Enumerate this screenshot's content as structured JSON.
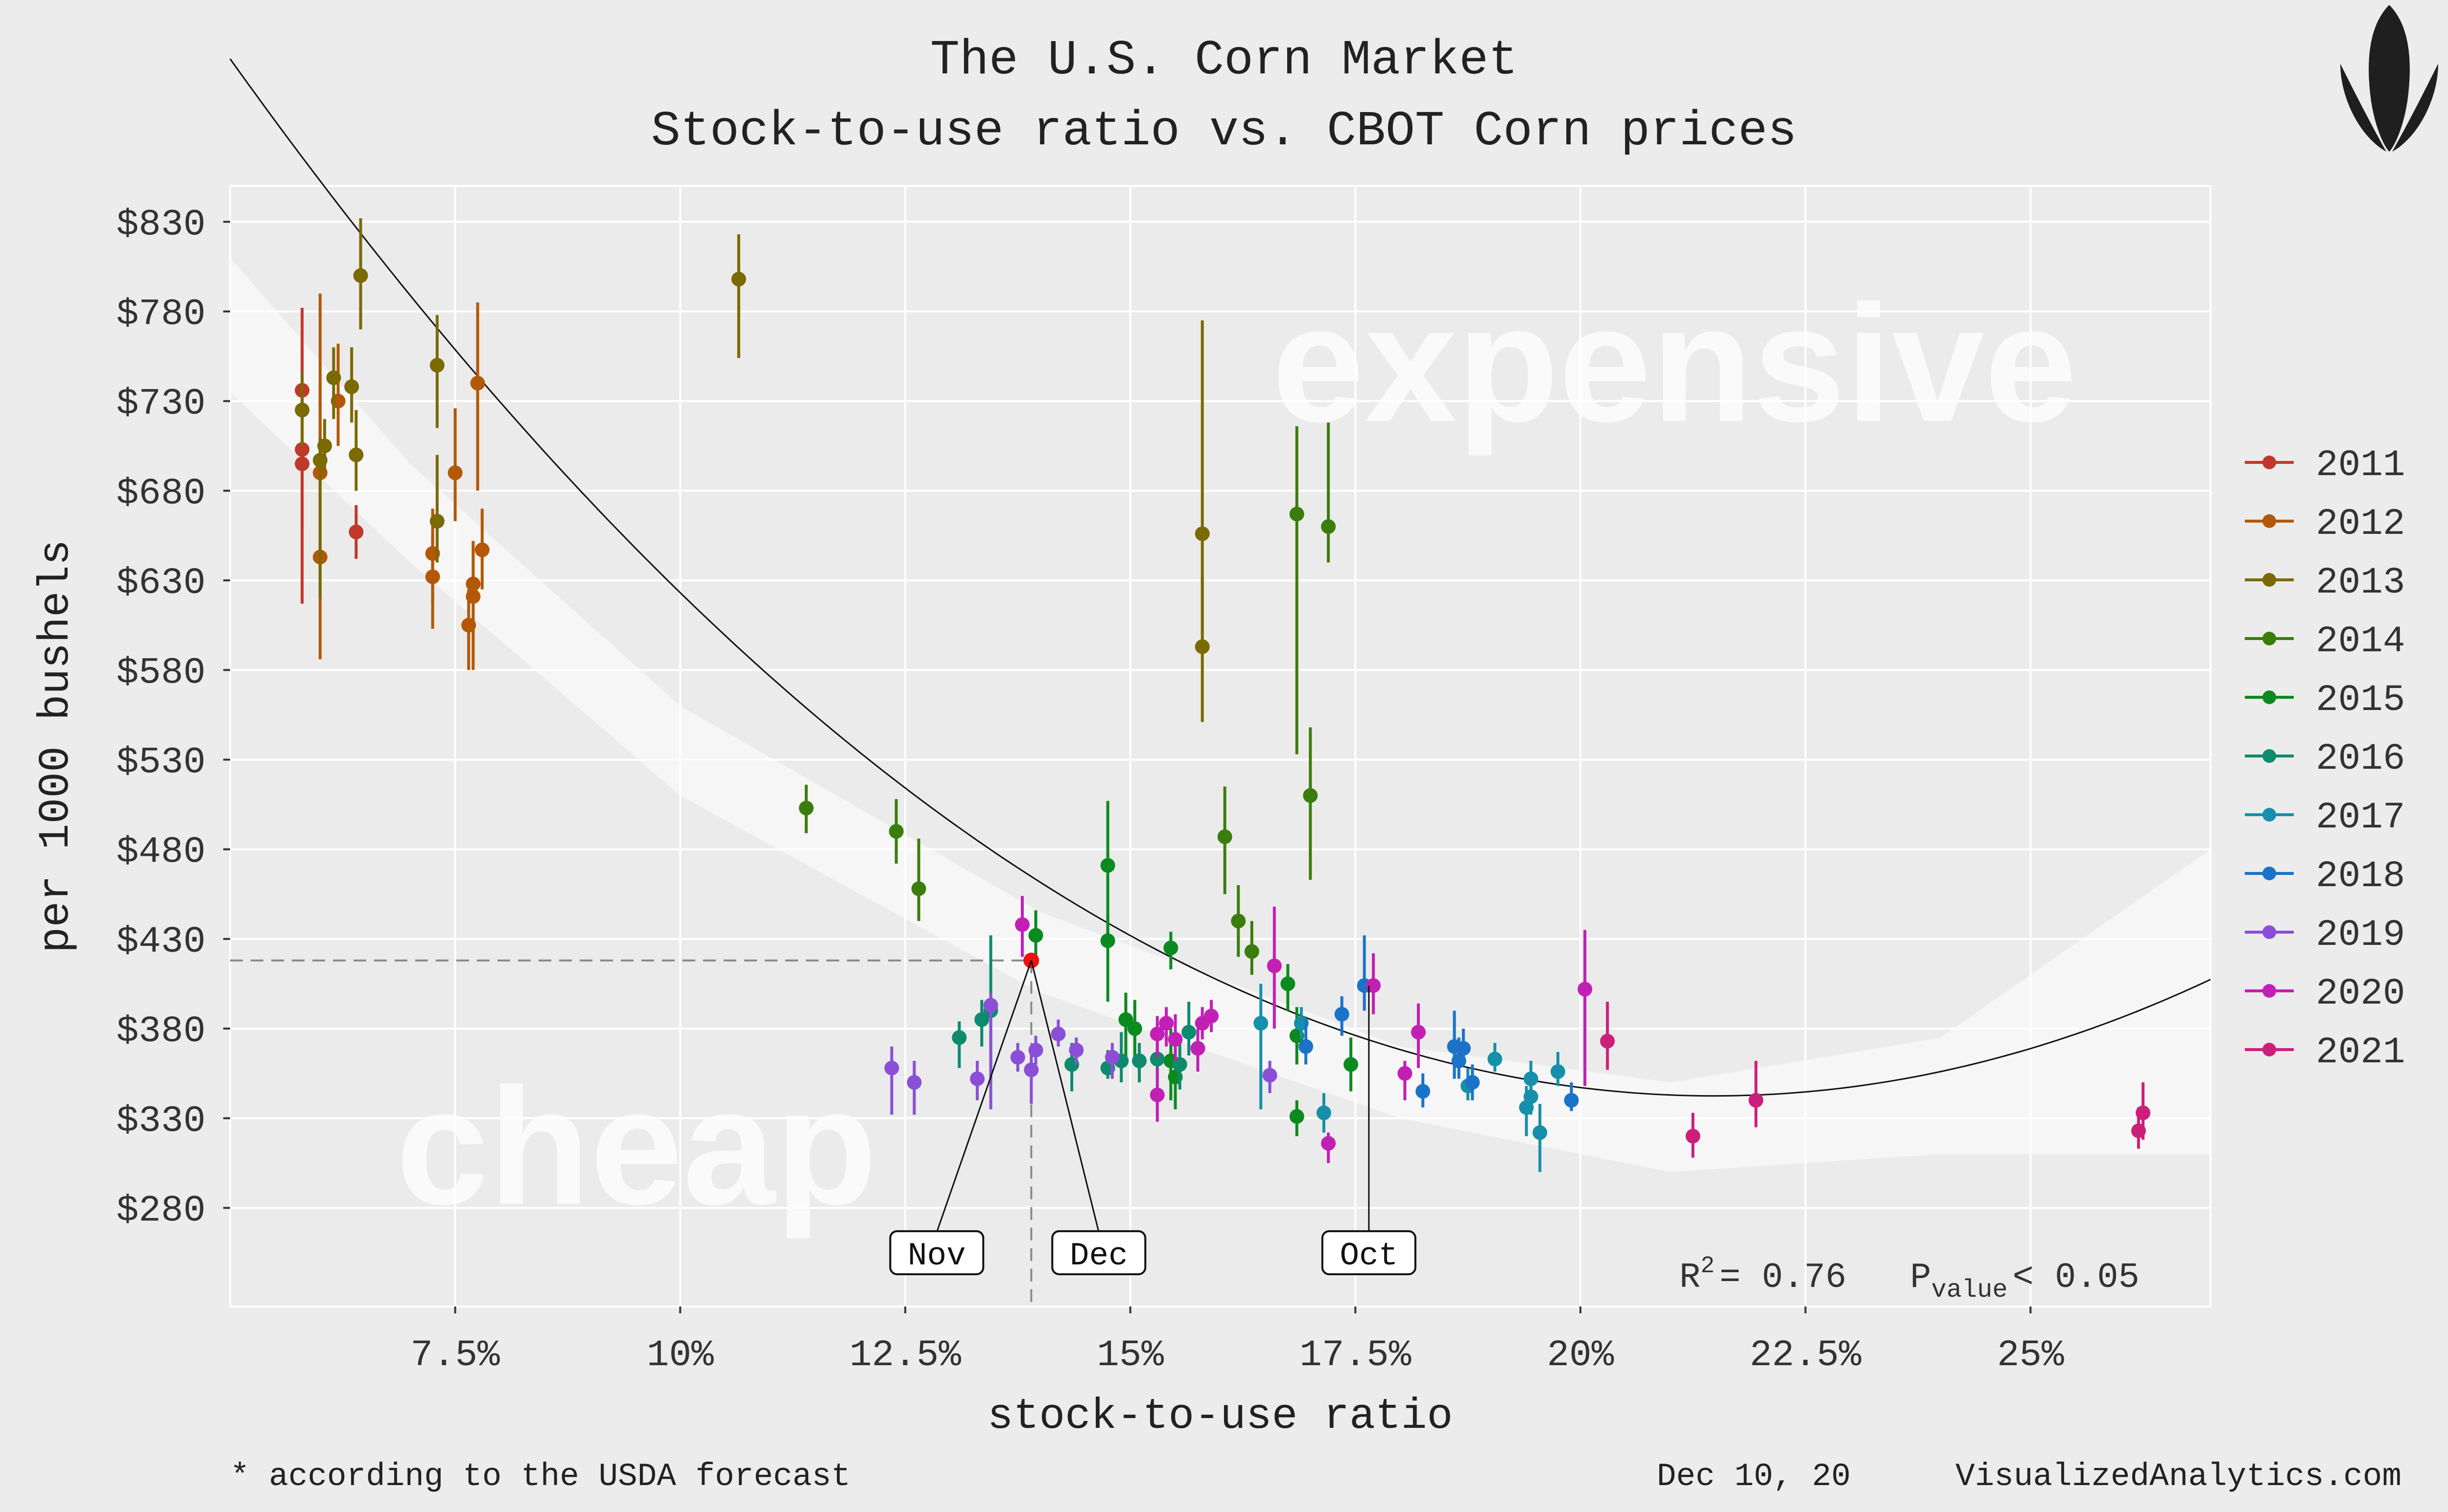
{
  "chart_data": {
    "type": "scatter",
    "title": "The U.S. Corn Market",
    "subtitle": "Stock-to-use ratio vs. CBOT Corn prices",
    "xlabel": "stock-to-use ratio",
    "ylabel": "per 1000 bushels",
    "xlim": [
      5.0,
      27.0
    ],
    "ylim": [
      225,
      850
    ],
    "x_ticks": [
      {
        "value": 7.5,
        "label": "7.5%"
      },
      {
        "value": 10,
        "label": "10%"
      },
      {
        "value": 12.5,
        "label": "12.5%"
      },
      {
        "value": 15,
        "label": "15%"
      },
      {
        "value": 17.5,
        "label": "17.5%"
      },
      {
        "value": 20,
        "label": "20%"
      },
      {
        "value": 22.5,
        "label": "22.5%"
      },
      {
        "value": 25,
        "label": "25%"
      }
    ],
    "y_ticks": [
      {
        "value": 280,
        "label": "$280"
      },
      {
        "value": 330,
        "label": "$330"
      },
      {
        "value": 380,
        "label": "$380"
      },
      {
        "value": 430,
        "label": "$430"
      },
      {
        "value": 480,
        "label": "$480"
      },
      {
        "value": 530,
        "label": "$530"
      },
      {
        "value": 580,
        "label": "$580"
      },
      {
        "value": 630,
        "label": "$630"
      },
      {
        "value": 680,
        "label": "$680"
      },
      {
        "value": 730,
        "label": "$730"
      },
      {
        "value": 780,
        "label": "$780"
      },
      {
        "value": 830,
        "label": "$830"
      }
    ],
    "grid": true,
    "legend_position": "right",
    "region_labels": {
      "expensive": "expensive",
      "cheap": "cheap"
    },
    "stats": {
      "r2_prefix": "R",
      "r2_sup": "2",
      "r2_value": "= 0.76",
      "p_prefix": "P",
      "p_sub": "value",
      "p_value": "< 0.05"
    },
    "trend_coeffs": [
      1325.12,
      -91.5,
      2.13
    ],
    "trend_band": [
      [
        5.0,
        810,
        735
      ],
      [
        7.0,
        695,
        640
      ],
      [
        10.0,
        560,
        510
      ],
      [
        14.0,
        445,
        400
      ],
      [
        18.0,
        370,
        330
      ],
      [
        21.0,
        350,
        300
      ],
      [
        24.0,
        375,
        310
      ],
      [
        27.0,
        480,
        310
      ]
    ],
    "highlight": {
      "x": 13.9,
      "y": 418,
      "color": "#ee1111"
    },
    "callouts": [
      {
        "label": "Nov",
        "x": 12.85,
        "y": 255,
        "tx": 13.9,
        "ty": 418
      },
      {
        "label": "Dec",
        "x": 14.65,
        "y": 255,
        "tx": 13.9,
        "ty": 418
      },
      {
        "label": "Oct",
        "x": 17.65,
        "y": 255,
        "tx": 17.65,
        "ty": 404
      }
    ],
    "series": [
      {
        "name": "2011",
        "color": "#c0392b",
        "points": [
          [
            5.8,
            736,
            782,
            690
          ],
          [
            5.8,
            703,
            760,
            660
          ],
          [
            5.8,
            695,
            735,
            617
          ],
          [
            6.4,
            657,
            672,
            642
          ]
        ]
      },
      {
        "name": "2012",
        "color": "#b35806",
        "points": [
          [
            6.0,
            643,
            790,
            586
          ],
          [
            6.0,
            690,
            740,
            630
          ],
          [
            6.2,
            730,
            762,
            705
          ],
          [
            7.25,
            632,
            655,
            603
          ],
          [
            7.25,
            645,
            670,
            618
          ],
          [
            7.5,
            690,
            726,
            663
          ],
          [
            7.65,
            605,
            625,
            580
          ],
          [
            7.7,
            628,
            650,
            600
          ],
          [
            7.7,
            621,
            652,
            580
          ],
          [
            7.75,
            740,
            785,
            680
          ],
          [
            7.8,
            647,
            670,
            625
          ]
        ]
      },
      {
        "name": "2013",
        "color": "#7a6a00",
        "points": [
          [
            5.8,
            725,
            746,
            705
          ],
          [
            6.0,
            697,
            710,
            620
          ],
          [
            6.05,
            705,
            720,
            690
          ],
          [
            6.15,
            743,
            760,
            720
          ],
          [
            6.35,
            738,
            760,
            718
          ],
          [
            6.4,
            700,
            725,
            680
          ],
          [
            6.45,
            800,
            832,
            770
          ],
          [
            7.3,
            750,
            778,
            715
          ],
          [
            7.3,
            663,
            700,
            640
          ],
          [
            10.65,
            798,
            823,
            754
          ],
          [
            15.8,
            593,
            632,
            551
          ],
          [
            15.8,
            656,
            775,
            600
          ]
        ]
      },
      {
        "name": "2014",
        "color": "#3a7d0c",
        "points": [
          [
            11.4,
            503,
            516,
            489
          ],
          [
            12.4,
            490,
            508,
            472
          ],
          [
            12.65,
            458,
            486,
            440
          ],
          [
            16.05,
            487,
            515,
            455
          ],
          [
            16.2,
            440,
            460,
            420
          ],
          [
            16.35,
            423,
            440,
            410
          ],
          [
            16.85,
            667,
            716,
            533
          ],
          [
            17.0,
            510,
            548,
            463
          ],
          [
            17.2,
            660,
            718,
            640
          ]
        ]
      },
      {
        "name": "2015",
        "color": "#0b8a1f",
        "points": [
          [
            13.95,
            432,
            446,
            420
          ],
          [
            14.75,
            471,
            507,
            428
          ],
          [
            14.75,
            429,
            444,
            395
          ],
          [
            14.95,
            385,
            400,
            360
          ],
          [
            15.05,
            380,
            396,
            360
          ],
          [
            15.45,
            425,
            434,
            413
          ],
          [
            15.45,
            362,
            380,
            340
          ],
          [
            15.5,
            353,
            368,
            335
          ],
          [
            16.75,
            405,
            416,
            390
          ],
          [
            16.85,
            376,
            392,
            360
          ],
          [
            16.85,
            331,
            340,
            320
          ],
          [
            17.45,
            360,
            375,
            345
          ]
        ]
      },
      {
        "name": "2016",
        "color": "#0e8a6e",
        "points": [
          [
            13.1,
            375,
            384,
            358
          ],
          [
            13.35,
            385,
            396,
            370
          ],
          [
            13.45,
            390,
            432,
            350
          ],
          [
            14.35,
            360,
            372,
            345
          ],
          [
            14.75,
            358,
            368,
            352
          ],
          [
            14.9,
            362,
            378,
            350
          ],
          [
            15.1,
            362,
            372,
            350
          ],
          [
            15.3,
            363,
            372,
            352
          ],
          [
            15.55,
            360,
            372,
            346
          ],
          [
            15.65,
            378,
            395,
            365
          ]
        ]
      },
      {
        "name": "2017",
        "color": "#1690aa",
        "points": [
          [
            16.45,
            383,
            405,
            335
          ],
          [
            16.9,
            383,
            392,
            374
          ],
          [
            17.15,
            333,
            344,
            322
          ],
          [
            18.75,
            348,
            358,
            340
          ],
          [
            19.05,
            363,
            372,
            356
          ],
          [
            19.4,
            336,
            348,
            320
          ],
          [
            19.45,
            352,
            362,
            346
          ],
          [
            19.45,
            342,
            350,
            332
          ],
          [
            19.55,
            322,
            338,
            300
          ],
          [
            19.75,
            356,
            367,
            348
          ]
        ]
      },
      {
        "name": "2018",
        "color": "#1a73c9",
        "points": [
          [
            16.95,
            370,
            385,
            360
          ],
          [
            17.35,
            388,
            398,
            376
          ],
          [
            17.6,
            404,
            432,
            390
          ],
          [
            18.25,
            345,
            355,
            336
          ],
          [
            18.6,
            370,
            390,
            352
          ],
          [
            18.65,
            362,
            375,
            352
          ],
          [
            18.7,
            369,
            380,
            360
          ],
          [
            18.8,
            350,
            360,
            340
          ],
          [
            19.9,
            340,
            350,
            334
          ]
        ]
      },
      {
        "name": "2019",
        "color": "#8a4fd6",
        "points": [
          [
            12.35,
            358,
            370,
            332
          ],
          [
            12.6,
            350,
            362,
            332
          ],
          [
            13.3,
            352,
            362,
            340
          ],
          [
            13.45,
            393,
            400,
            335
          ],
          [
            13.75,
            364,
            372,
            356
          ],
          [
            13.9,
            357,
            366,
            338
          ],
          [
            13.95,
            368,
            376,
            360
          ],
          [
            14.2,
            377,
            385,
            370
          ],
          [
            14.4,
            368,
            375,
            360
          ],
          [
            14.8,
            364,
            372,
            352
          ],
          [
            16.55,
            354,
            362,
            344
          ]
        ]
      },
      {
        "name": "2020",
        "color": "#c21fb5",
        "points": [
          [
            13.8,
            438,
            454,
            420
          ],
          [
            15.3,
            343,
            358,
            328
          ],
          [
            15.3,
            377,
            387,
            364
          ],
          [
            15.4,
            383,
            392,
            370
          ],
          [
            15.5,
            374,
            388,
            362
          ],
          [
            15.75,
            369,
            380,
            356
          ],
          [
            15.8,
            383,
            392,
            374
          ],
          [
            15.9,
            387,
            396,
            378
          ],
          [
            16.6,
            415,
            448,
            380
          ],
          [
            17.2,
            316,
            322,
            305
          ],
          [
            17.7,
            404,
            422,
            388
          ],
          [
            18.05,
            355,
            362,
            340
          ],
          [
            18.2,
            378,
            394,
            358
          ],
          [
            20.05,
            402,
            435,
            348
          ]
        ]
      },
      {
        "name": "2021",
        "color": "#cc1f7a",
        "points": [
          [
            20.3,
            373,
            395,
            357
          ],
          [
            21.25,
            320,
            333,
            308
          ],
          [
            21.95,
            340,
            362,
            325
          ],
          [
            26.2,
            323,
            336,
            313
          ],
          [
            26.25,
            333,
            350,
            318
          ]
        ]
      }
    ]
  },
  "footer": {
    "note": "* according to the USDA forecast",
    "date": "Dec 10, 20",
    "site": "VisualizedAnalytics.com"
  },
  "logo": {
    "name": "corn-logo-icon",
    "color": "#1f1f1f"
  }
}
